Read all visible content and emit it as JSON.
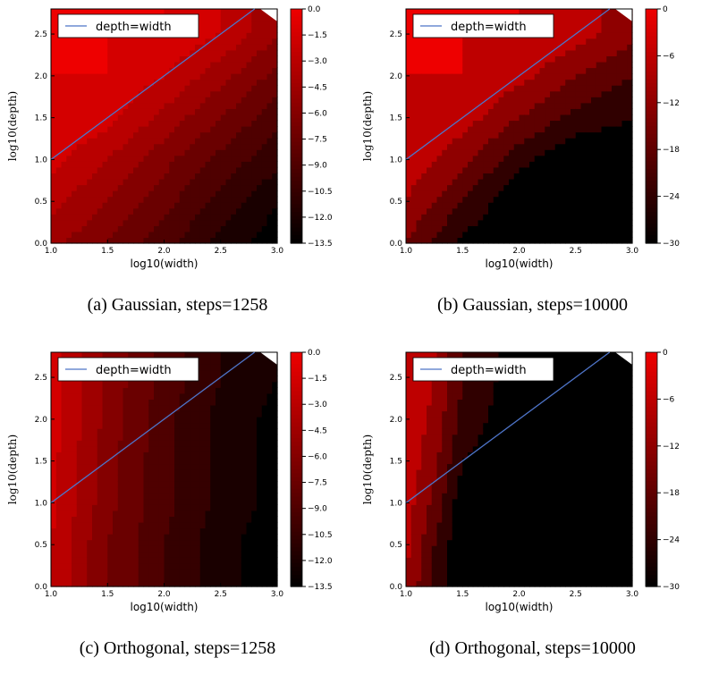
{
  "panels": [
    {
      "caption": "(a) Gaussian, steps=1258",
      "xlabel": "log10(width)",
      "ylabel": "log10(depth)",
      "xticks": [
        "1.0",
        "1.5",
        "2.0",
        "2.5",
        "3.0"
      ],
      "yticks": [
        "0.0",
        "0.5",
        "1.0",
        "1.5",
        "2.0",
        "2.5"
      ],
      "legend": "depth=width",
      "colorbar_ticks": [
        "0.0",
        "−1.5",
        "−3.0",
        "−4.5",
        "−6.0",
        "−7.5",
        "−9.0",
        "−10.5",
        "−12.0",
        "−13.5"
      ]
    },
    {
      "caption": "(b) Gaussian, steps=10000",
      "xlabel": "log10(width)",
      "ylabel": "log10(depth)",
      "xticks": [
        "1.0",
        "1.5",
        "2.0",
        "2.5",
        "3.0"
      ],
      "yticks": [
        "0.0",
        "0.5",
        "1.0",
        "1.5",
        "2.0",
        "2.5"
      ],
      "legend": "depth=width",
      "colorbar_ticks": [
        "0",
        "−6",
        "−12",
        "−18",
        "−24",
        "−30"
      ]
    },
    {
      "caption": "(c) Orthogonal, steps=1258",
      "xlabel": "log10(width)",
      "ylabel": "log10(depth)",
      "xticks": [
        "1.0",
        "1.5",
        "2.0",
        "2.5",
        "3.0"
      ],
      "yticks": [
        "0.0",
        "0.5",
        "1.0",
        "1.5",
        "2.0",
        "2.5"
      ],
      "legend": "depth=width",
      "colorbar_ticks": [
        "0.0",
        "−1.5",
        "−3.0",
        "−4.5",
        "−6.0",
        "−7.5",
        "−9.0",
        "−10.5",
        "−12.0",
        "−13.5"
      ]
    },
    {
      "caption": "(d) Orthogonal, steps=10000",
      "xlabel": "log10(width)",
      "ylabel": "log10(depth)",
      "xticks": [
        "1.0",
        "1.5",
        "2.0",
        "2.5",
        "3.0"
      ],
      "yticks": [
        "0.0",
        "0.5",
        "1.0",
        "1.5",
        "2.0",
        "2.5"
      ],
      "legend": "depth=width",
      "colorbar_ticks": [
        "0",
        "−6",
        "−12",
        "−18",
        "−24",
        "−30"
      ]
    }
  ],
  "chart_data": [
    {
      "type": "heatmap",
      "subtype": "filled contour",
      "x_range": [
        1.0,
        3.0
      ],
      "y_range": [
        0.0,
        2.8
      ],
      "colorbar_range": [
        -13.5,
        0.0
      ],
      "colorbar_levels": [
        0.0,
        -1.5,
        -3.0,
        -4.5,
        -6.0,
        -7.5,
        -9.0,
        -10.5,
        -12.0,
        -13.5
      ],
      "colormap": {
        "high": "#ee0000",
        "low": "#000000"
      },
      "overlay_series": {
        "name": "depth=width",
        "x": [
          1.0,
          2.8
        ],
        "y": [
          1.0,
          2.8
        ],
        "color": "#4e74c8"
      },
      "contour_profile": {
        "description": "colorbar value at grid points (x=log10 width, y=log10 depth)",
        "x": [
          1.0,
          1.5,
          2.0,
          2.5,
          3.0
        ],
        "y": [
          0.0,
          0.5,
          1.0,
          1.5,
          2.0,
          2.5
        ],
        "z": [
          [
            -4.0,
            -6.0,
            -8.5,
            -11.0,
            -13.0
          ],
          [
            -2.5,
            -4.5,
            -7.0,
            -9.5,
            -12.0
          ],
          [
            -1.0,
            -3.0,
            -5.5,
            -8.0,
            -10.0
          ],
          [
            0.0,
            -1.0,
            -3.5,
            -6.0,
            -8.5
          ],
          [
            0.0,
            0.0,
            -1.5,
            -4.0,
            -6.5
          ],
          [
            0.0,
            0.0,
            0.0,
            -1.5,
            -4.5
          ]
        ]
      }
    },
    {
      "type": "heatmap",
      "subtype": "filled contour",
      "x_range": [
        1.0,
        3.0
      ],
      "y_range": [
        0.0,
        2.8
      ],
      "colorbar_range": [
        -30,
        0
      ],
      "colorbar_levels": [
        0,
        -6,
        -12,
        -18,
        -24,
        -30
      ],
      "colormap": {
        "high": "#ee0000",
        "low": "#000000"
      },
      "overlay_series": {
        "name": "depth=width",
        "x": [
          1.0,
          2.8
        ],
        "y": [
          1.0,
          2.8
        ],
        "color": "#4e74c8"
      },
      "contour_profile": {
        "description": "colorbar value at grid points (x=log10 width, y=log10 depth)",
        "x": [
          1.0,
          1.5,
          2.0,
          2.5,
          3.0
        ],
        "y": [
          0.0,
          0.5,
          1.0,
          1.5,
          2.0,
          2.5
        ],
        "z": [
          [
            -12,
            -26,
            -30,
            -30,
            -30
          ],
          [
            -6,
            -18,
            -30,
            -30,
            -30
          ],
          [
            -2,
            -10,
            -22,
            -30,
            -30
          ],
          [
            0,
            -3,
            -12,
            -20,
            -24
          ],
          [
            0,
            0,
            -4,
            -12,
            -18
          ],
          [
            0,
            0,
            0,
            -3,
            -10
          ]
        ]
      }
    },
    {
      "type": "heatmap",
      "subtype": "filled contour",
      "x_range": [
        1.0,
        3.0
      ],
      "y_range": [
        0.0,
        2.8
      ],
      "colorbar_range": [
        -13.5,
        0.0
      ],
      "colorbar_levels": [
        0.0,
        -1.5,
        -3.0,
        -4.5,
        -6.0,
        -7.5,
        -9.0,
        -10.5,
        -12.0,
        -13.5
      ],
      "colormap": {
        "high": "#ee0000",
        "low": "#000000"
      },
      "overlay_series": {
        "name": "depth=width",
        "x": [
          1.0,
          2.8
        ],
        "y": [
          1.0,
          2.8
        ],
        "color": "#4e74c8"
      },
      "contour_profile": {
        "description": "colorbar value at grid points; mostly width dependent",
        "x": [
          1.0,
          1.5,
          2.0,
          2.5,
          3.0
        ],
        "y": [
          0.0,
          0.5,
          1.0,
          1.5,
          2.0,
          2.5
        ],
        "z": [
          [
            -1.5,
            -6.0,
            -9.0,
            -11.5,
            -13.0
          ],
          [
            -1.5,
            -6.0,
            -9.0,
            -11.5,
            -13.0
          ],
          [
            -1.0,
            -5.5,
            -8.5,
            -11.0,
            -12.5
          ],
          [
            -1.0,
            -5.5,
            -8.5,
            -11.0,
            -12.5
          ],
          [
            -0.5,
            -5.0,
            -8.5,
            -11.0,
            -12.5
          ],
          [
            -0.5,
            -5.0,
            -8.0,
            -10.5,
            -12.0
          ]
        ]
      }
    },
    {
      "type": "heatmap",
      "subtype": "filled contour",
      "x_range": [
        1.0,
        3.0
      ],
      "y_range": [
        0.0,
        2.8
      ],
      "colorbar_range": [
        -30,
        0
      ],
      "colorbar_levels": [
        0,
        -6,
        -12,
        -18,
        -24,
        -30
      ],
      "colormap": {
        "high": "#ee0000",
        "low": "#000000"
      },
      "overlay_series": {
        "name": "depth=width",
        "x": [
          1.0,
          2.8
        ],
        "y": [
          1.0,
          2.8
        ],
        "color": "#4e74c8"
      },
      "contour_profile": {
        "description": "colorbar value at grid points; black region for width above ~1.3",
        "x": [
          1.0,
          1.25,
          1.5,
          2.0,
          2.5,
          3.0
        ],
        "y": [
          0.0,
          0.5,
          1.0,
          1.5,
          2.0,
          2.5
        ],
        "z": [
          [
            -6,
            -20,
            -30,
            -30,
            -30,
            -30
          ],
          [
            -4,
            -18,
            -30,
            -30,
            -30,
            -30
          ],
          [
            -3,
            -14,
            -28,
            -30,
            -30,
            -30
          ],
          [
            -2,
            -10,
            -24,
            -30,
            -30,
            -30
          ],
          [
            -1,
            -8,
            -20,
            -29,
            -29,
            -29
          ],
          [
            0,
            -6,
            -18,
            -28,
            -28,
            -28
          ]
        ]
      }
    }
  ]
}
